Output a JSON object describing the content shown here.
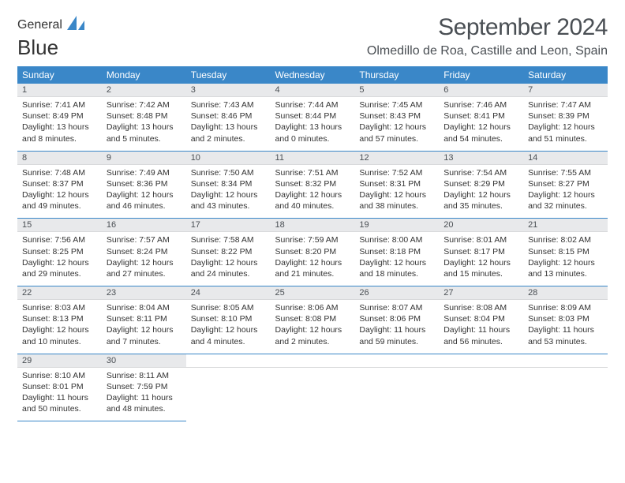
{
  "brand": {
    "part1": "General",
    "part2": "Blue",
    "logo_color": "#3a87c8"
  },
  "title": "September 2024",
  "location": "Olmedillo de Roa, Castille and Leon, Spain",
  "header_bg": "#3a87c8",
  "header_fg": "#ffffff",
  "daynum_bg": "#e8e9eb",
  "dow": [
    "Sunday",
    "Monday",
    "Tuesday",
    "Wednesday",
    "Thursday",
    "Friday",
    "Saturday"
  ],
  "weeks": [
    [
      {
        "n": "1",
        "sr": "7:41 AM",
        "ss": "8:49 PM",
        "dh": "13",
        "dm": "8"
      },
      {
        "n": "2",
        "sr": "7:42 AM",
        "ss": "8:48 PM",
        "dh": "13",
        "dm": "5"
      },
      {
        "n": "3",
        "sr": "7:43 AM",
        "ss": "8:46 PM",
        "dh": "13",
        "dm": "2"
      },
      {
        "n": "4",
        "sr": "7:44 AM",
        "ss": "8:44 PM",
        "dh": "13",
        "dm": "0"
      },
      {
        "n": "5",
        "sr": "7:45 AM",
        "ss": "8:43 PM",
        "dh": "12",
        "dm": "57"
      },
      {
        "n": "6",
        "sr": "7:46 AM",
        "ss": "8:41 PM",
        "dh": "12",
        "dm": "54"
      },
      {
        "n": "7",
        "sr": "7:47 AM",
        "ss": "8:39 PM",
        "dh": "12",
        "dm": "51"
      }
    ],
    [
      {
        "n": "8",
        "sr": "7:48 AM",
        "ss": "8:37 PM",
        "dh": "12",
        "dm": "49"
      },
      {
        "n": "9",
        "sr": "7:49 AM",
        "ss": "8:36 PM",
        "dh": "12",
        "dm": "46"
      },
      {
        "n": "10",
        "sr": "7:50 AM",
        "ss": "8:34 PM",
        "dh": "12",
        "dm": "43"
      },
      {
        "n": "11",
        "sr": "7:51 AM",
        "ss": "8:32 PM",
        "dh": "12",
        "dm": "40"
      },
      {
        "n": "12",
        "sr": "7:52 AM",
        "ss": "8:31 PM",
        "dh": "12",
        "dm": "38"
      },
      {
        "n": "13",
        "sr": "7:54 AM",
        "ss": "8:29 PM",
        "dh": "12",
        "dm": "35"
      },
      {
        "n": "14",
        "sr": "7:55 AM",
        "ss": "8:27 PM",
        "dh": "12",
        "dm": "32"
      }
    ],
    [
      {
        "n": "15",
        "sr": "7:56 AM",
        "ss": "8:25 PM",
        "dh": "12",
        "dm": "29"
      },
      {
        "n": "16",
        "sr": "7:57 AM",
        "ss": "8:24 PM",
        "dh": "12",
        "dm": "27"
      },
      {
        "n": "17",
        "sr": "7:58 AM",
        "ss": "8:22 PM",
        "dh": "12",
        "dm": "24"
      },
      {
        "n": "18",
        "sr": "7:59 AM",
        "ss": "8:20 PM",
        "dh": "12",
        "dm": "21"
      },
      {
        "n": "19",
        "sr": "8:00 AM",
        "ss": "8:18 PM",
        "dh": "12",
        "dm": "18"
      },
      {
        "n": "20",
        "sr": "8:01 AM",
        "ss": "8:17 PM",
        "dh": "12",
        "dm": "15"
      },
      {
        "n": "21",
        "sr": "8:02 AM",
        "ss": "8:15 PM",
        "dh": "12",
        "dm": "13"
      }
    ],
    [
      {
        "n": "22",
        "sr": "8:03 AM",
        "ss": "8:13 PM",
        "dh": "12",
        "dm": "10"
      },
      {
        "n": "23",
        "sr": "8:04 AM",
        "ss": "8:11 PM",
        "dh": "12",
        "dm": "7"
      },
      {
        "n": "24",
        "sr": "8:05 AM",
        "ss": "8:10 PM",
        "dh": "12",
        "dm": "4"
      },
      {
        "n": "25",
        "sr": "8:06 AM",
        "ss": "8:08 PM",
        "dh": "12",
        "dm": "2"
      },
      {
        "n": "26",
        "sr": "8:07 AM",
        "ss": "8:06 PM",
        "dh": "11",
        "dm": "59"
      },
      {
        "n": "27",
        "sr": "8:08 AM",
        "ss": "8:04 PM",
        "dh": "11",
        "dm": "56"
      },
      {
        "n": "28",
        "sr": "8:09 AM",
        "ss": "8:03 PM",
        "dh": "11",
        "dm": "53"
      }
    ],
    [
      {
        "n": "29",
        "sr": "8:10 AM",
        "ss": "8:01 PM",
        "dh": "11",
        "dm": "50"
      },
      {
        "n": "30",
        "sr": "8:11 AM",
        "ss": "7:59 PM",
        "dh": "11",
        "dm": "48"
      },
      null,
      null,
      null,
      null,
      null
    ]
  ]
}
